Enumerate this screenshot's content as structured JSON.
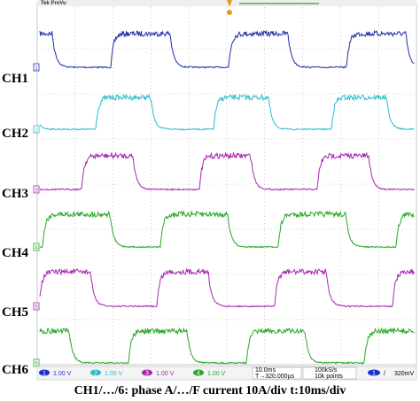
{
  "header": {
    "title": "Tek PreVu"
  },
  "channels": [
    {
      "label": "CH1",
      "marker": "1"
    },
    {
      "label": "CH2",
      "marker": "2"
    },
    {
      "label": "CH3",
      "marker": "3"
    },
    {
      "label": "CH4",
      "marker": "4"
    },
    {
      "label": "CH5",
      "marker": "5"
    },
    {
      "label": "CH6",
      "marker": "6"
    }
  ],
  "status_bar": {
    "scales": [
      {
        "channel": "1",
        "scale": "1.00 V"
      },
      {
        "channel": "2",
        "scale": "1.00 V"
      },
      {
        "channel": "3",
        "scale": "1.00 V"
      },
      {
        "channel": "4",
        "scale": "1.00 V"
      }
    ],
    "timebase": "10.0ms",
    "trigger_position": "T→320.000µs",
    "sample_rate": "100kS/s",
    "record_length": "10k points",
    "trigger_channel": "1",
    "trigger_slope": "/",
    "trigger_level": "320mV"
  },
  "caption": "CH1/…/6: phase A/…/F current 10A/div t:10ms/div"
}
